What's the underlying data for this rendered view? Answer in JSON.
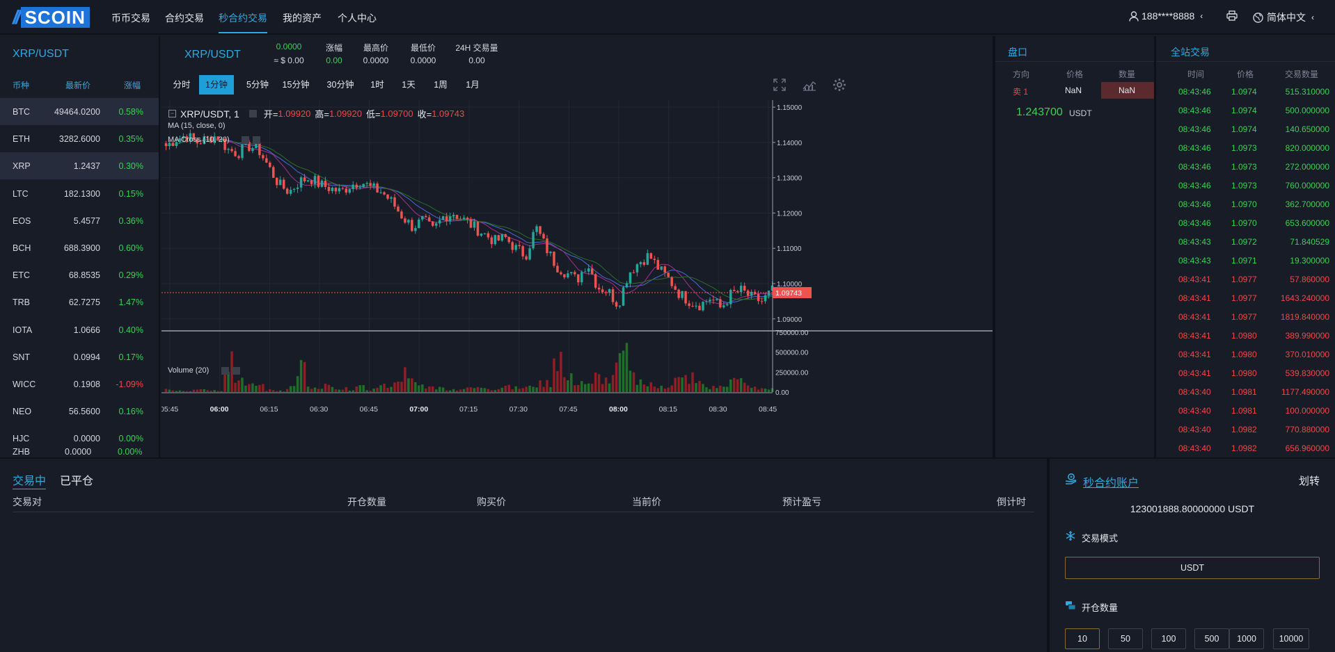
{
  "brand": {
    "logo_text": "SCOIN"
  },
  "nav": {
    "items": [
      "币币交易",
      "合约交易",
      "秒合约交易",
      "我的资产",
      "个人中心"
    ],
    "user": "188****8888",
    "language": "简体中文"
  },
  "market": {
    "pair": "XRP/USDT",
    "headers": [
      "币种",
      "最新价",
      "涨幅"
    ],
    "rows": [
      {
        "symbol": "BTC",
        "price": "49464.0200",
        "change": "0.58%"
      },
      {
        "symbol": "ETH",
        "price": "3282.6000",
        "change": "0.35%"
      },
      {
        "symbol": "XRP",
        "price": "1.2437",
        "change": "0.30%"
      },
      {
        "symbol": "LTC",
        "price": "182.1300",
        "change": "0.15%"
      },
      {
        "symbol": "EOS",
        "price": "5.4577",
        "change": "0.36%"
      },
      {
        "symbol": "BCH",
        "price": "688.3900",
        "change": "0.60%"
      },
      {
        "symbol": "ETC",
        "price": "68.8535",
        "change": "0.29%"
      },
      {
        "symbol": "TRB",
        "price": "62.7275",
        "change": "1.47%"
      },
      {
        "symbol": "IOTA",
        "price": "1.0666",
        "change": "0.40%"
      },
      {
        "symbol": "SNT",
        "price": "0.0994",
        "change": "0.17%"
      },
      {
        "symbol": "WICC",
        "price": "0.1908",
        "change": "-1.09%"
      },
      {
        "symbol": "NEO",
        "price": "56.5600",
        "change": "0.16%"
      },
      {
        "symbol": "HJC",
        "price": "0.0000",
        "change": "0.00%"
      },
      {
        "symbol": "ZHB",
        "price": "0.0000",
        "change": "0.00%"
      }
    ]
  },
  "chart_header": {
    "pair": "XRP/USDT",
    "price": "0.0000",
    "price_usd": "≈ $ 0.00",
    "stats": [
      {
        "label": "涨幅",
        "value": "0.00"
      },
      {
        "label": "最高价",
        "value": "0.0000"
      },
      {
        "label": "最低价",
        "value": "0.0000"
      },
      {
        "label": "24H 交易量",
        "value": "0.00"
      }
    ],
    "timeframes": [
      "分时",
      "1分钟",
      "5分钟",
      "15分钟",
      "30分钟",
      "1时",
      "1天",
      "1周",
      "1月"
    ],
    "active_timeframe": "1分钟"
  },
  "chart_data": {
    "type": "candlestick",
    "title": "XRP/USDT, 1",
    "ohlc_label": {
      "open_k": "开=",
      "open": "1.09920",
      "high_k": "高=",
      "high": "1.09920",
      "low_k": "低=",
      "low": "1.09700",
      "close_k": "收=",
      "close": "1.09743"
    },
    "indicators": [
      "MA (15, close, 0)",
      "MA Cross (10, 20)"
    ],
    "volume_label": "Volume (20)",
    "last_price_tag": "1.09743",
    "y_ticks": [
      "1.15000",
      "1.14000",
      "1.13000",
      "1.12000",
      "1.11000",
      "1.10000",
      "1.09000"
    ],
    "ylim": [
      1.087,
      1.152
    ],
    "volume_ticks": [
      "750000.00",
      "500000.00",
      "250000.00",
      "0.00"
    ],
    "volume_max": 750000,
    "x_ticks": [
      "05:45",
      "06:00",
      "06:15",
      "06:30",
      "06:45",
      "07:00",
      "07:15",
      "07:30",
      "07:45",
      "08:00",
      "08:15",
      "08:30",
      "08:45"
    ],
    "x_bold": [
      "06:00",
      "07:00",
      "08:00"
    ],
    "close_path": [
      1.139,
      1.141,
      1.142,
      1.14,
      1.141,
      1.142,
      1.138,
      1.137,
      1.139,
      1.138,
      1.133,
      1.128,
      1.126,
      1.129,
      1.13,
      1.128,
      1.127,
      1.126,
      1.128,
      1.129,
      1.127,
      1.126,
      1.123,
      1.119,
      1.116,
      1.118,
      1.115,
      1.119,
      1.12,
      1.118,
      1.116,
      1.114,
      1.112,
      1.113,
      1.11,
      1.108,
      1.116,
      1.11,
      1.105,
      1.103,
      1.101,
      1.106,
      1.099,
      1.098,
      1.094,
      1.103,
      1.106,
      1.108,
      1.104,
      1.101,
      1.097,
      1.095,
      1.094,
      1.096,
      1.093,
      1.097,
      1.098,
      1.096,
      1.095,
      1.098
    ],
    "volume_path": [
      40000,
      30000,
      20000,
      60000,
      35000,
      25000,
      580000,
      180000,
      90000,
      110000,
      30000,
      20000,
      80000,
      380000,
      60000,
      40000,
      90000,
      30000,
      50000,
      70000,
      40000,
      90000,
      120000,
      280000,
      160000,
      100000,
      70000,
      60000,
      40000,
      50000,
      60000,
      80000,
      50000,
      90000,
      60000,
      70000,
      120000,
      150000,
      580000,
      200000,
      170000,
      100000,
      230000,
      180000,
      400000,
      520000,
      240000,
      110000,
      80000,
      90000,
      180000,
      220000,
      140000,
      70000,
      80000,
      150000,
      160000,
      90000,
      60000,
      40000
    ]
  },
  "orderbook": {
    "title": "盘口",
    "headers": [
      "方向",
      "价格",
      "数量"
    ],
    "ask": {
      "side": "卖 1",
      "price": "NaN",
      "qty": "NaN"
    },
    "last_price": "1.243700",
    "last_unit": "USDT"
  },
  "trades": {
    "title": "全站交易",
    "headers": [
      "时间",
      "价格",
      "交易数量"
    ],
    "rows": [
      {
        "time": "08:43:46",
        "price": "1.0974",
        "qty": "515.310000",
        "side": "buy"
      },
      {
        "time": "08:43:46",
        "price": "1.0974",
        "qty": "500.000000",
        "side": "buy"
      },
      {
        "time": "08:43:46",
        "price": "1.0974",
        "qty": "140.650000",
        "side": "buy"
      },
      {
        "time": "08:43:46",
        "price": "1.0973",
        "qty": "820.000000",
        "side": "buy"
      },
      {
        "time": "08:43:46",
        "price": "1.0973",
        "qty": "272.000000",
        "side": "buy"
      },
      {
        "time": "08:43:46",
        "price": "1.0973",
        "qty": "760.000000",
        "side": "buy"
      },
      {
        "time": "08:43:46",
        "price": "1.0970",
        "qty": "362.700000",
        "side": "buy"
      },
      {
        "time": "08:43:46",
        "price": "1.0970",
        "qty": "653.600000",
        "side": "buy"
      },
      {
        "time": "08:43:43",
        "price": "1.0972",
        "qty": "71.840529",
        "side": "buy"
      },
      {
        "time": "08:43:43",
        "price": "1.0971",
        "qty": "19.300000",
        "side": "buy"
      },
      {
        "time": "08:43:41",
        "price": "1.0977",
        "qty": "57.860000",
        "side": "sell"
      },
      {
        "time": "08:43:41",
        "price": "1.0977",
        "qty": "1643.240000",
        "side": "sell"
      },
      {
        "time": "08:43:41",
        "price": "1.0977",
        "qty": "1819.840000",
        "side": "sell"
      },
      {
        "time": "08:43:41",
        "price": "1.0980",
        "qty": "389.990000",
        "side": "sell"
      },
      {
        "time": "08:43:41",
        "price": "1.0980",
        "qty": "370.010000",
        "side": "sell"
      },
      {
        "time": "08:43:41",
        "price": "1.0980",
        "qty": "539.830000",
        "side": "sell"
      },
      {
        "time": "08:43:40",
        "price": "1.0981",
        "qty": "1177.490000",
        "side": "sell"
      },
      {
        "time": "08:43:40",
        "price": "1.0981",
        "qty": "100.000000",
        "side": "sell"
      },
      {
        "time": "08:43:40",
        "price": "1.0982",
        "qty": "770.880000",
        "side": "sell"
      },
      {
        "time": "08:43:40",
        "price": "1.0982",
        "qty": "656.960000",
        "side": "sell"
      }
    ]
  },
  "orders": {
    "tabs": [
      "交易中",
      "已平仓"
    ],
    "headers": [
      "交易对",
      "开仓数量",
      "购买价",
      "当前价",
      "预计盈亏",
      "倒计时"
    ]
  },
  "account": {
    "title": "秒合约账户",
    "transfer": "划转",
    "balance": "123001888.80000000 USDT",
    "mode_label": "交易模式",
    "mode_value": "USDT",
    "qty_label": "开仓数量",
    "qty_options": [
      "10",
      "50",
      "100",
      "500",
      "1000",
      "10000"
    ]
  },
  "colors": {
    "up": "#3bd154",
    "down": "#f04848",
    "accent": "#2eaadf",
    "candle_up": "#26a69a",
    "candle_down": "#ef5350"
  }
}
